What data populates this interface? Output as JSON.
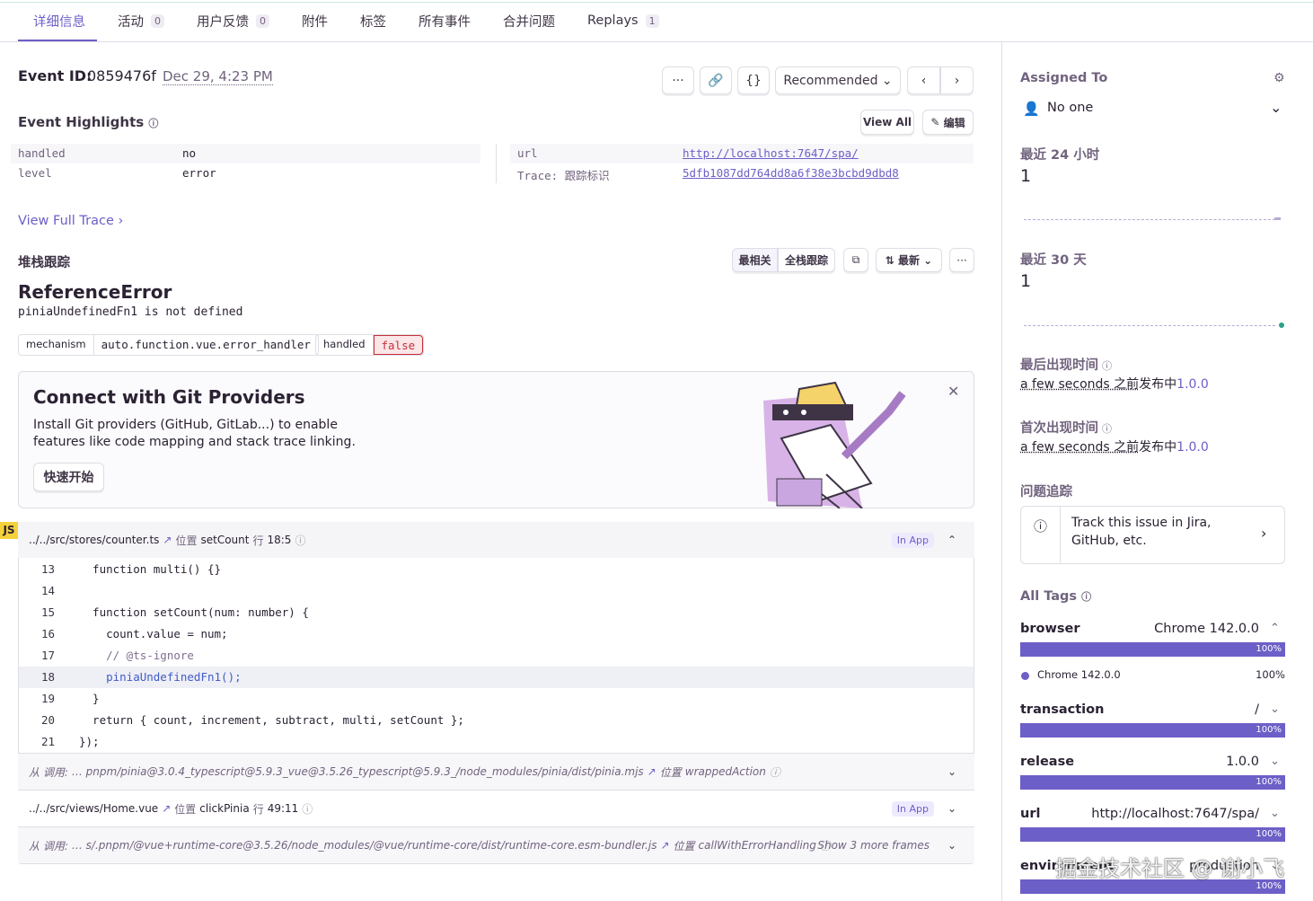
{
  "tabs": [
    {
      "label": "详细信息"
    },
    {
      "label": "活动",
      "badge": "0"
    },
    {
      "label": "用户反馈",
      "badge": "0"
    },
    {
      "label": "附件"
    },
    {
      "label": "标签"
    },
    {
      "label": "所有事件"
    },
    {
      "label": "合并问题"
    },
    {
      "label": "Replays",
      "badge": "1"
    }
  ],
  "event": {
    "id_label": "Event ID:",
    "id": "0859476f",
    "date": "Dec 29, 4:23 PM",
    "recommended": "Recommended"
  },
  "highlights": {
    "title": "Event Highlights",
    "view_all": "View All",
    "edit": "编辑",
    "left": [
      {
        "key": "handled",
        "value": "no"
      },
      {
        "key": "level",
        "value": "error"
      }
    ],
    "right": [
      {
        "key": "url",
        "value": "http://localhost:7647/spa/"
      },
      {
        "key": "Trace: 跟踪标识",
        "value": "5dfb1087dd764dd8a6f38e3bcbd9dbd8"
      }
    ]
  },
  "view_full_trace": "View Full Trace",
  "stack": {
    "title": "堆栈跟踪",
    "most_relevant": "最相关",
    "full_stack": "全栈跟踪",
    "newest": "最新",
    "error_type": "ReferenceError",
    "error_message": "piniaUndefinedFn1 is not defined",
    "chips": [
      {
        "key": "mechanism",
        "value": "auto.function.vue.error_handler"
      },
      {
        "key": "handled",
        "value": "false"
      }
    ]
  },
  "git": {
    "title": "Connect with Git Providers",
    "body_1": "Install Git providers (GitHub, GitLab...) to enable",
    "body_2": "features like code mapping and stack trace linking.",
    "button": "快速开始"
  },
  "frames": {
    "lang": "JS",
    "frame_0": {
      "file": "../../src/stores/counter.ts",
      "loc_label": "位置",
      "func": "setCount",
      "line_label": "行",
      "line": "18:5",
      "in_app": "In App",
      "code": [
        {
          "n": 13,
          "code": "  function multi() {}"
        },
        {
          "n": 14,
          "code": ""
        },
        {
          "n": 15,
          "code": "  function setCount(num: number) {"
        },
        {
          "n": 16,
          "code": "    count.value = num;"
        },
        {
          "n": 17,
          "code": "    // @ts-ignore"
        },
        {
          "n": 18,
          "code": "    piniaUndefinedFn1();"
        },
        {
          "n": 19,
          "code": "  }"
        },
        {
          "n": 20,
          "code": "  return { count, increment, subtract, multi, setCount };"
        },
        {
          "n": 21,
          "code": "});"
        }
      ]
    },
    "frame_1": {
      "prefix": "从 调用:",
      "file": "… pnpm/pinia@3.0.4_typescript@5.9.3_vue@3.5.26_typescript@5.9.3_/node_modules/pinia/dist/pinia.mjs",
      "loc_label": "位置",
      "func": "wrappedAction"
    },
    "frame_2": {
      "file": "../../src/views/Home.vue",
      "loc_label": "位置",
      "func": "clickPinia",
      "line_label": "行",
      "line": "49:11",
      "in_app": "In App"
    },
    "frame_3": {
      "prefix": "从 调用:",
      "file": "… s/.pnpm/@vue+runtime-core@3.5.26/node_modules/@vue/runtime-core/dist/runtime-core.esm-bundler.js",
      "loc_label": "位置",
      "func": "callWithErrorHandling",
      "more": "Show 3 more frames"
    }
  },
  "sidebar": {
    "assigned_to": "Assigned To",
    "assignee": "No one",
    "last_24h": {
      "label": "最近 24 小时",
      "count": "1"
    },
    "last_30d": {
      "label": "最近 30 天",
      "count": "1"
    },
    "last_seen": {
      "label": "最后出现时间",
      "when": "a few seconds 之前",
      "in_release": "发布中",
      "release": "1.0.0"
    },
    "first_seen": {
      "label": "首次出现时间",
      "when": "a few seconds 之前",
      "in_release": "发布中",
      "release": "1.0.0"
    },
    "tracking": {
      "label": "问题追踪",
      "text_1": "Track this issue in Jira,",
      "text_2": "GitHub, etc."
    },
    "all_tags": "All Tags",
    "tags": [
      {
        "key": "browser",
        "value": "Chrome 142.0.0",
        "percent": "100%",
        "legend_name": "Chrome 142.0.0",
        "legend_percent": "100%"
      },
      {
        "key": "transaction",
        "value": "/",
        "percent": "100%"
      },
      {
        "key": "release",
        "value": "1.0.0",
        "percent": "100%"
      },
      {
        "key": "url",
        "value": "http://localhost:7647/spa/",
        "percent": "100%"
      },
      {
        "key": "environment",
        "value": "production",
        "percent": "100%"
      }
    ]
  },
  "watermark": "掘金技术社区 @ 谢小飞"
}
